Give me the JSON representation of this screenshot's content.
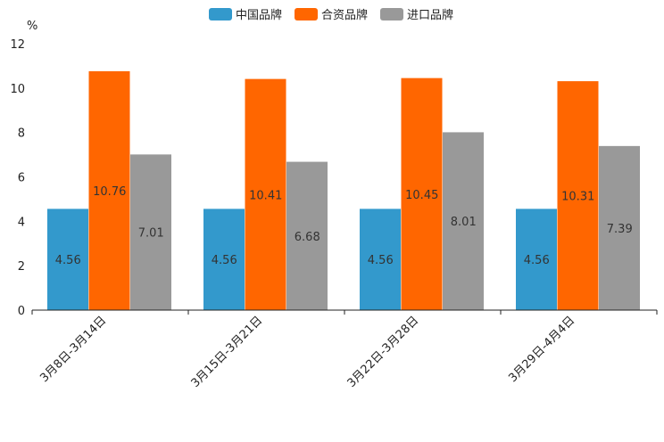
{
  "chart_data": {
    "type": "bar",
    "title": "",
    "xlabel": "",
    "ylabel": "%",
    "ylim": [
      0,
      12
    ],
    "yticks": [
      0,
      2,
      4,
      6,
      8,
      10,
      12
    ],
    "grid": false,
    "legend_position": "top-center",
    "categories": [
      "3月8日-3月14日",
      "3月15日-3月21日",
      "3月22日-3月28日",
      "3月29日-4月4日"
    ],
    "series": [
      {
        "name": "中国品牌",
        "color": "#3399cc",
        "values": [
          4.56,
          4.56,
          4.56,
          4.56
        ]
      },
      {
        "name": "合资品牌",
        "color": "#ff6600",
        "values": [
          10.76,
          10.41,
          10.45,
          10.31
        ]
      },
      {
        "name": "进口品牌",
        "color": "#999999",
        "values": [
          7.01,
          6.68,
          8.01,
          7.39
        ]
      }
    ]
  }
}
